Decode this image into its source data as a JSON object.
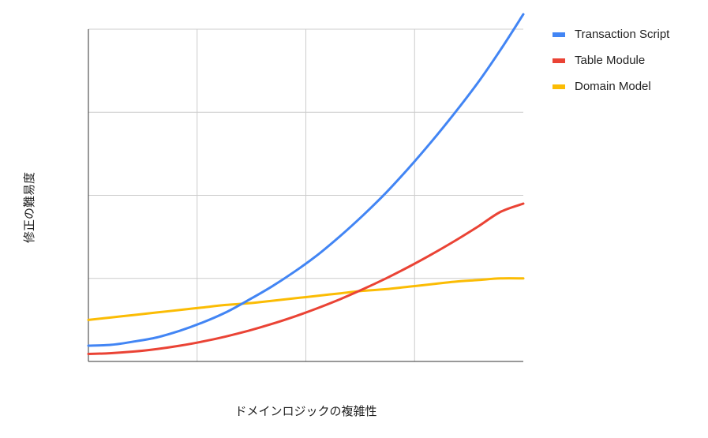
{
  "chart_data": {
    "type": "line",
    "title": "",
    "xlabel": "ドメインロジックの複雑性",
    "ylabel": "修正の難易度",
    "xlim": [
      0,
      19
    ],
    "ylim": [
      0,
      4
    ],
    "grid": true,
    "legend_position": "right",
    "x": [
      0,
      1,
      2,
      3,
      4,
      5,
      6,
      7,
      8,
      9,
      10,
      11,
      12,
      13,
      14,
      15,
      16,
      17,
      18,
      19
    ],
    "series": [
      {
        "name": "Transaction Script",
        "color": "#4285f4",
        "values": [
          0.19,
          0.2,
          0.24,
          0.29,
          0.37,
          0.47,
          0.59,
          0.74,
          0.9,
          1.08,
          1.28,
          1.51,
          1.76,
          2.03,
          2.33,
          2.65,
          2.99,
          3.35,
          3.75,
          4.18
        ]
      },
      {
        "name": "Table Module",
        "color": "#ea4335",
        "values": [
          0.09,
          0.1,
          0.12,
          0.15,
          0.19,
          0.24,
          0.3,
          0.37,
          0.45,
          0.54,
          0.64,
          0.75,
          0.87,
          1.0,
          1.14,
          1.29,
          1.45,
          1.62,
          1.8,
          1.9
        ]
      },
      {
        "name": "Domain Model",
        "color": "#fbbc04",
        "values": [
          0.5,
          0.53,
          0.56,
          0.59,
          0.62,
          0.65,
          0.68,
          0.7,
          0.73,
          0.76,
          0.79,
          0.82,
          0.85,
          0.87,
          0.9,
          0.93,
          0.96,
          0.98,
          1.0,
          1.0
        ]
      }
    ]
  }
}
